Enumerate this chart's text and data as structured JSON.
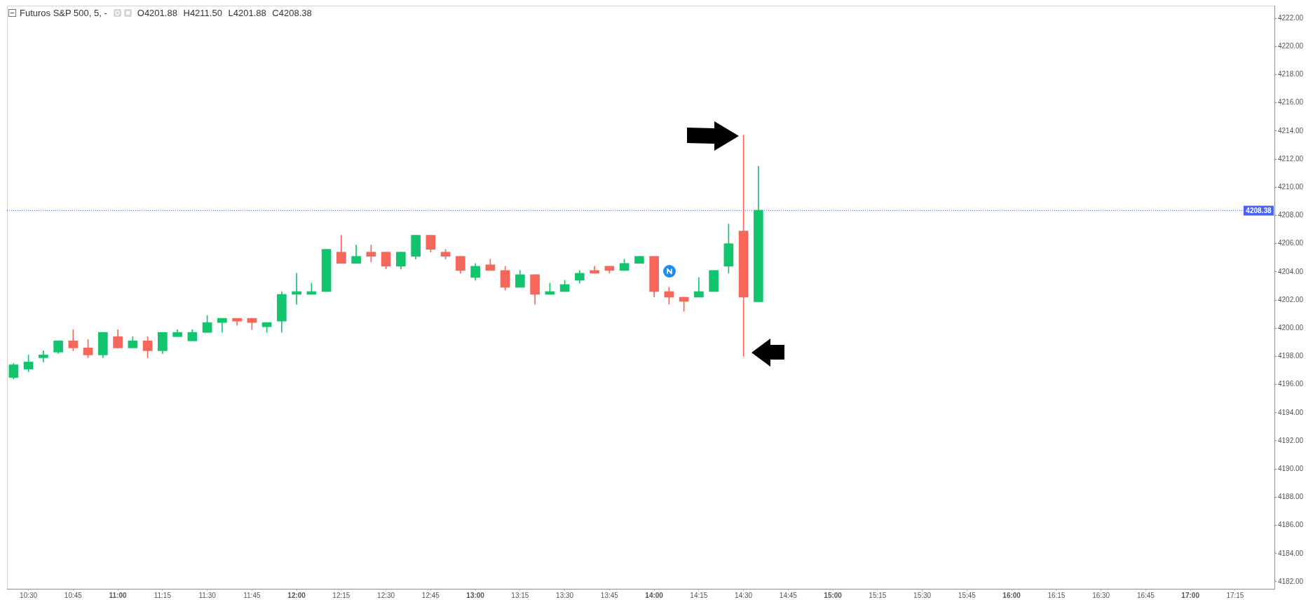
{
  "chart_data": {
    "type": "candlestick",
    "title": "Futuros S&P 500, 5, -",
    "subtitle": "O4201.88 H4211.50 L4201.88 C4208.38",
    "x": [
      10.4167,
      10.5,
      10.5833,
      10.6667,
      10.75,
      10.8333,
      10.9167,
      11,
      11.0833,
      11.1667,
      11.25,
      11.3333,
      11.4167,
      11.5,
      11.5833,
      11.6667,
      11.75,
      11.8333,
      11.9167,
      12,
      12.0833,
      12.1667,
      12.25,
      12.3333,
      12.4167,
      12.5,
      12.5833,
      12.6667,
      12.75,
      12.8333,
      12.9167,
      13,
      13.0833,
      13.1667,
      13.25,
      13.3333,
      13.4167,
      13.5,
      13.5833,
      13.6667,
      13.75,
      13.8333,
      13.9167,
      14,
      14.0833,
      14.1667,
      14.25,
      14.3333,
      14.4167,
      14.5,
      14.5833
    ],
    "ohlc": [
      [
        4196.5,
        4197.5,
        4196.4,
        4197.4
      ],
      [
        4197.1,
        4198.1,
        4196.9,
        4197.6
      ],
      [
        4197.9,
        4198.4,
        4197.6,
        4198.1
      ],
      [
        4198.3,
        4199.1,
        4198.2,
        4199.1
      ],
      [
        4199.1,
        4199.9,
        4198.4,
        4198.6
      ],
      [
        4198.6,
        4199.2,
        4197.9,
        4198.1
      ],
      [
        4198.1,
        4199.7,
        4197.9,
        4199.7
      ],
      [
        4199.4,
        4199.9,
        4198.6,
        4198.6
      ],
      [
        4198.6,
        4199.4,
        4198.6,
        4199.1
      ],
      [
        4199.1,
        4199.4,
        4197.9,
        4198.4
      ],
      [
        4198.4,
        4199.7,
        4198.2,
        4199.7
      ],
      [
        4199.4,
        4199.9,
        4199.4,
        4199.7
      ],
      [
        4199.1,
        4199.9,
        4199.1,
        4199.7
      ],
      [
        4199.7,
        4200.9,
        4199.7,
        4200.4
      ],
      [
        4200.4,
        4200.7,
        4199.7,
        4200.7
      ],
      [
        4200.7,
        4200.7,
        4200.2,
        4200.5
      ],
      [
        4200.7,
        4200.7,
        4199.9,
        4200.4
      ],
      [
        4200.1,
        4200.4,
        4199.7,
        4200.4
      ],
      [
        4200.5,
        4202.6,
        4199.7,
        4202.4
      ],
      [
        4202.4,
        4203.9,
        4201.7,
        4202.6
      ],
      [
        4202.4,
        4203.2,
        4202.4,
        4202.6
      ],
      [
        4202.6,
        4205.6,
        4202.6,
        4205.6
      ],
      [
        4205.4,
        4206.6,
        4204.6,
        4204.6
      ],
      [
        4204.6,
        4205.9,
        4204.6,
        4205.1
      ],
      [
        4205.4,
        4205.9,
        4204.7,
        4205.1
      ],
      [
        4205.4,
        4205.4,
        4204.2,
        4204.4
      ],
      [
        4204.4,
        4205.4,
        4204.2,
        4205.4
      ],
      [
        4205.1,
        4206.6,
        4204.9,
        4206.6
      ],
      [
        4206.6,
        4206.6,
        4205.4,
        4205.6
      ],
      [
        4205.4,
        4205.6,
        4204.9,
        4205.1
      ],
      [
        4205.1,
        4205.1,
        4203.9,
        4204.1
      ],
      [
        4203.6,
        4204.6,
        4203.4,
        4204.4
      ],
      [
        4204.5,
        4204.9,
        4204.1,
        4204.1
      ],
      [
        4204.1,
        4204.4,
        4202.7,
        4202.9
      ],
      [
        4202.9,
        4204.1,
        4202.9,
        4203.8
      ],
      [
        4203.8,
        4203.8,
        4201.7,
        4202.4
      ],
      [
        4202.4,
        4203.2,
        4202.4,
        4202.6
      ],
      [
        4202.6,
        4203.4,
        4202.6,
        4203.1
      ],
      [
        4203.4,
        4204.1,
        4203.2,
        4203.9
      ],
      [
        4204.1,
        4204.4,
        4203.9,
        4203.9
      ],
      [
        4204.4,
        4204.4,
        4203.9,
        4204.1
      ],
      [
        4204.1,
        4204.9,
        4204.1,
        4204.6
      ],
      [
        4204.6,
        4205.1,
        4204.6,
        4205.1
      ],
      [
        4205.1,
        4205.1,
        4202.2,
        4202.6
      ],
      [
        4202.6,
        4202.9,
        4201.7,
        4202.2
      ],
      [
        4202.2,
        4202.2,
        4201.2,
        4201.9
      ],
      [
        4202.2,
        4203.6,
        4202.2,
        4202.6
      ],
      [
        4202.6,
        4204.1,
        4202.6,
        4204.1
      ],
      [
        4204.4,
        4207.4,
        4203.9,
        4206.0
      ],
      [
        4206.9,
        4213.7,
        4198.0,
        4202.2
      ],
      [
        4201.88,
        4211.5,
        4201.88,
        4208.38
      ]
    ],
    "colors": [
      "#13c46f",
      "#13c46f",
      "#13c46f",
      "#13c46f",
      "#f5675b",
      "#f5675b",
      "#13c46f",
      "#f5675b",
      "#13c46f",
      "#f5675b",
      "#13c46f",
      "#13c46f",
      "#13c46f",
      "#13c46f",
      "#13c46f",
      "#f5675b",
      "#f5675b",
      "#13c46f",
      "#13c46f",
      "#13c46f",
      "#13c46f",
      "#13c46f",
      "#f5675b",
      "#13c46f",
      "#f5675b",
      "#f5675b",
      "#13c46f",
      "#13c46f",
      "#f5675b",
      "#f5675b",
      "#f5675b",
      "#13c46f",
      "#f5675b",
      "#f5675b",
      "#13c46f",
      "#f5675b",
      "#13c46f",
      "#13c46f",
      "#13c46f",
      "#f5675b",
      "#f5675b",
      "#13c46f",
      "#13c46f",
      "#f5675b",
      "#f5675b",
      "#f5675b",
      "#13c46f",
      "#13c46f",
      "#13c46f",
      "#f5675b",
      "#13c46f"
    ],
    "xlim": [
      10.38,
      17.47
    ],
    "xticks": [
      {
        "value": 10.5,
        "label": "10:30"
      },
      {
        "value": 10.75,
        "label": "10:45"
      },
      {
        "value": 11,
        "label": "11:00"
      },
      {
        "value": 11.25,
        "label": "11:15"
      },
      {
        "value": 11.5,
        "label": "11:30"
      },
      {
        "value": 11.75,
        "label": "11:45"
      },
      {
        "value": 12,
        "label": "12:00"
      },
      {
        "value": 12.25,
        "label": "12:15"
      },
      {
        "value": 12.5,
        "label": "12:30"
      },
      {
        "value": 12.75,
        "label": "12:45"
      },
      {
        "value": 13,
        "label": "13:00"
      },
      {
        "value": 13.25,
        "label": "13:15"
      },
      {
        "value": 13.5,
        "label": "13:30"
      },
      {
        "value": 13.75,
        "label": "13:45"
      },
      {
        "value": 14,
        "label": "14:00"
      },
      {
        "value": 14.25,
        "label": "14:15"
      },
      {
        "value": 14.5,
        "label": "14:30"
      },
      {
        "value": 14.75,
        "label": "14:45"
      },
      {
        "value": 15,
        "label": "15:00"
      },
      {
        "value": 15.25,
        "label": "15:15"
      },
      {
        "value": 15.5,
        "label": "15:30"
      },
      {
        "value": 15.75,
        "label": "15:45"
      },
      {
        "value": 16,
        "label": "16:00"
      },
      {
        "value": 16.25,
        "label": "16:15"
      },
      {
        "value": 16.5,
        "label": "16:30"
      },
      {
        "value": 16.75,
        "label": "16:45"
      },
      {
        "value": 17,
        "label": "17:00"
      },
      {
        "value": 17.25,
        "label": "17:15"
      }
    ],
    "ylim": [
      4181.5,
      4222.9
    ],
    "yticks": [
      {
        "value": 4182,
        "label": "4182.00"
      },
      {
        "value": 4184,
        "label": "4184.00"
      },
      {
        "value": 4186,
        "label": "4186.00"
      },
      {
        "value": 4188,
        "label": "4188.00"
      },
      {
        "value": 4190,
        "label": "4190.00"
      },
      {
        "value": 4192,
        "label": "4192.00"
      },
      {
        "value": 4194,
        "label": "4194.00"
      },
      {
        "value": 4196,
        "label": "4196.00"
      },
      {
        "value": 4198,
        "label": "4198.00"
      },
      {
        "value": 4200,
        "label": "4200.00"
      },
      {
        "value": 4202,
        "label": "4202.00"
      },
      {
        "value": 4204,
        "label": "4204.00"
      },
      {
        "value": 4206,
        "label": "4206.00"
      },
      {
        "value": 4208,
        "label": "4208.00"
      },
      {
        "value": 4210,
        "label": "4210.00"
      },
      {
        "value": 4212,
        "label": "4212.00"
      },
      {
        "value": 4214,
        "label": "4214.00"
      },
      {
        "value": 4216,
        "label": "4216.00"
      },
      {
        "value": 4218,
        "label": "4218.00"
      },
      {
        "value": 4220,
        "label": "4220.00"
      },
      {
        "value": 4222,
        "label": "4222.00"
      }
    ],
    "ref_lines": [
      {
        "axis": "y",
        "value": 4208.38,
        "label": "4208.38",
        "color": "#4a63f0",
        "line_style": "dotted"
      }
    ]
  }
}
